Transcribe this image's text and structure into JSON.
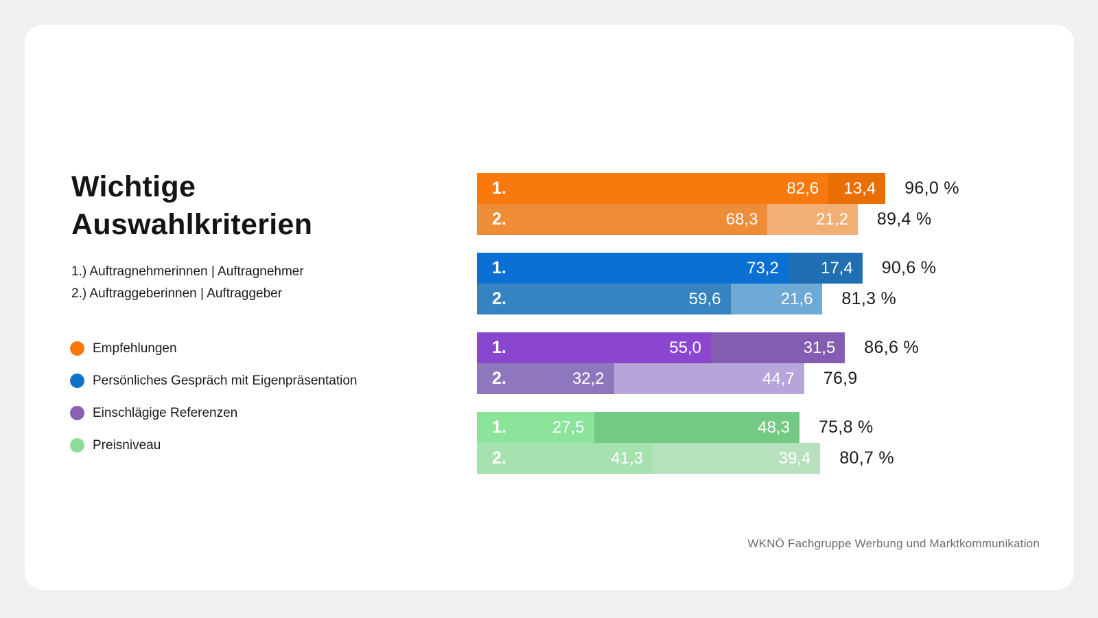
{
  "title": "Wichtige Auswahlkriterien",
  "subtitle_lines": [
    "1.) Auftragnehmerinnen | Auftragnehmer",
    "2.) Auftraggeberinnen | Auftraggeber"
  ],
  "legend": [
    {
      "label": "Empfehlungen",
      "color": "#F8790D"
    },
    {
      "label": "Persönliches Gespräch mit Eigenpräsentation",
      "color": "#1171C8"
    },
    {
      "label": "Einschlägige Referenzen",
      "color": "#8A5FB5"
    },
    {
      "label": "Preisniveau",
      "color": "#8BDC99"
    }
  ],
  "footer": "WKNÖ Fachgruppe Werbung und Marktkommunikation",
  "chart_data": {
    "type": "bar",
    "orientation": "horizontal",
    "title": "Wichtige Auswahlkriterien",
    "unit": "%",
    "value_format": "decimal-comma",
    "xlim": [
      0,
      100
    ],
    "grid": false,
    "legend_position": "left",
    "row_labels_meaning": {
      "1.": "Auftragnehmerinnen | Auftragnehmer",
      "2.": "Auftraggeberinnen | Auftraggeber"
    },
    "groups": [
      {
        "category": "Empfehlungen",
        "rows": [
          {
            "label": "1.",
            "total": 96.0,
            "total_display": "96,0 %",
            "segments": [
              {
                "value": 82.6,
                "display": "82,6",
                "color": "#F8790D"
              },
              {
                "value": 13.4,
                "display": "13,4",
                "color": "#E96E04"
              }
            ]
          },
          {
            "label": "2.",
            "total": 89.4,
            "total_display": "89,4 %",
            "segments": [
              {
                "value": 68.3,
                "display": "68,3",
                "color": "#EE8C38"
              },
              {
                "value": 21.2,
                "display": "21,2",
                "color": "#F3AE74"
              }
            ]
          }
        ]
      },
      {
        "category": "Persönliches Gespräch mit Eigenpräsentation",
        "rows": [
          {
            "label": "1.",
            "total": 90.6,
            "total_display": "90,6 %",
            "segments": [
              {
                "value": 73.2,
                "display": "73,2",
                "color": "#0B70D4"
              },
              {
                "value": 17.4,
                "display": "17,4",
                "color": "#1F6FB2"
              }
            ]
          },
          {
            "label": "2.",
            "total": 81.3,
            "total_display": "81,3 %",
            "segments": [
              {
                "value": 59.6,
                "display": "59,6",
                "color": "#3583C1"
              },
              {
                "value": 21.6,
                "display": "21,6",
                "color": "#6FA9D6"
              }
            ]
          }
        ]
      },
      {
        "category": "Einschlägige Referenzen",
        "rows": [
          {
            "label": "1.",
            "total": 86.6,
            "total_display": "86,6 %",
            "segments": [
              {
                "value": 55.0,
                "display": "55,0",
                "color": "#8A46CF"
              },
              {
                "value": 31.5,
                "display": "31,5",
                "color": "#845CB1"
              }
            ]
          },
          {
            "label": "2.",
            "total": 76.9,
            "total_display": "76,9",
            "segments": [
              {
                "value": 32.2,
                "display": "32,2",
                "color": "#8F77BD"
              },
              {
                "value": 44.7,
                "display": "44,7",
                "color": "#B6A5D8"
              }
            ]
          }
        ]
      },
      {
        "category": "Preisniveau",
        "rows": [
          {
            "label": "1.",
            "total": 75.8,
            "total_display": "75,8 %",
            "segments": [
              {
                "value": 27.5,
                "display": "27,5",
                "color": "#8CE49B"
              },
              {
                "value": 48.3,
                "display": "48,3",
                "color": "#74CA82"
              }
            ]
          },
          {
            "label": "2.",
            "total": 80.7,
            "total_display": "80,7 %",
            "segments": [
              {
                "value": 41.3,
                "display": "41,3",
                "color": "#A5E2AF"
              },
              {
                "value": 39.4,
                "display": "39,4",
                "color": "#B7E0BD"
              }
            ]
          }
        ]
      }
    ]
  }
}
